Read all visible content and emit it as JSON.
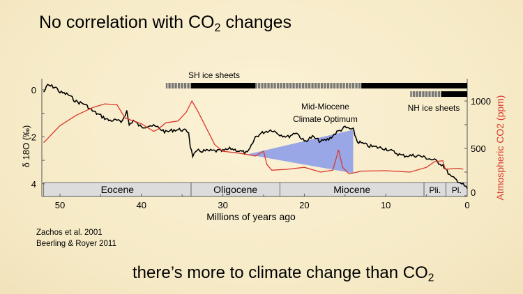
{
  "slide": {
    "title_main": "No correlation with CO",
    "title_sub": "2",
    "title_end": " changes",
    "bottom_main": "there’s more to climate change than CO",
    "bottom_sub": "2",
    "references": [
      "Zachos et al. 2001",
      "Beerling & Royer 2011"
    ]
  },
  "chart_data": {
    "type": "line",
    "xlabel": "Millions of years ago",
    "ylabel_left": "δ 18O (‰)",
    "ylabel_right": "Atmospheric CO2 (ppm)",
    "x_ticks": [
      50,
      40,
      30,
      20,
      10,
      0
    ],
    "xlim": [
      52,
      0
    ],
    "y_left_ticks": [
      0,
      2,
      4
    ],
    "y_left_lim": [
      -0.5,
      4.5
    ],
    "y_left_inverted": true,
    "y_right_ticks": [
      0,
      500,
      1000
    ],
    "y_right_lim": [
      0,
      1250
    ],
    "colors": {
      "d18O": "#000000",
      "co2": "#d9382c",
      "optimum": "#8f9ee8",
      "epoch_bar": "#dcdcdc"
    },
    "series": [
      {
        "axis": "left",
        "points": [
          [
            52,
            0.1
          ],
          [
            51.5,
            -0.2
          ],
          [
            50.5,
            -0.1
          ],
          [
            50,
            0.1
          ],
          [
            49,
            0.2
          ],
          [
            48,
            0.5
          ],
          [
            47,
            0.6
          ],
          [
            46,
            0.9
          ],
          [
            45,
            1.1
          ],
          [
            44,
            1.3
          ],
          [
            43,
            1.3
          ],
          [
            42.5,
            1.4
          ],
          [
            41.8,
            0.9
          ],
          [
            41.5,
            1.5
          ],
          [
            41,
            1.3
          ],
          [
            40,
            1.6
          ],
          [
            39,
            1.5
          ],
          [
            38,
            1.6
          ],
          [
            37,
            1.8
          ],
          [
            36,
            1.7
          ],
          [
            35,
            1.7
          ],
          [
            34.2,
            1.8
          ],
          [
            34,
            2.4
          ],
          [
            33.7,
            2.8
          ],
          [
            33,
            2.6
          ],
          [
            32,
            2.6
          ],
          [
            31,
            2.6
          ],
          [
            30,
            2.6
          ],
          [
            29,
            2.5
          ],
          [
            28,
            2.6
          ],
          [
            27,
            2.7
          ],
          [
            26.5,
            2.4
          ],
          [
            26,
            2.0
          ],
          [
            25,
            1.8
          ],
          [
            24,
            1.7
          ],
          [
            23,
            1.9
          ],
          [
            22,
            2.0
          ],
          [
            21,
            1.8
          ],
          [
            20,
            2.2
          ],
          [
            19,
            2.0
          ],
          [
            18,
            2.2
          ],
          [
            17,
            2.1
          ],
          [
            16,
            1.8
          ],
          [
            15,
            1.6
          ],
          [
            14,
            1.7
          ],
          [
            13.8,
            1.9
          ],
          [
            13.5,
            2.2
          ],
          [
            12,
            2.4
          ],
          [
            10,
            2.5
          ],
          [
            8,
            2.8
          ],
          [
            6,
            2.8
          ],
          [
            5,
            2.9
          ],
          [
            4,
            3.0
          ],
          [
            3,
            3.2
          ],
          [
            2,
            3.7
          ],
          [
            1,
            3.9
          ],
          [
            0,
            4.2
          ]
        ]
      },
      {
        "axis": "right",
        "points": [
          [
            52,
            560
          ],
          [
            50,
            740
          ],
          [
            48,
            850
          ],
          [
            46,
            930
          ],
          [
            44.5,
            970
          ],
          [
            43,
            960
          ],
          [
            42,
            820
          ],
          [
            40,
            760
          ],
          [
            38.5,
            680
          ],
          [
            38,
            700
          ],
          [
            37,
            770
          ],
          [
            35.5,
            790
          ],
          [
            34.5,
            880
          ],
          [
            33.8,
            1000
          ],
          [
            33,
            880
          ],
          [
            31,
            540
          ],
          [
            30,
            470
          ],
          [
            28,
            450
          ],
          [
            26,
            420
          ],
          [
            25,
            470
          ],
          [
            24.6,
            330
          ],
          [
            24,
            270
          ],
          [
            22,
            280
          ],
          [
            20,
            300
          ],
          [
            18,
            250
          ],
          [
            16.5,
            270
          ],
          [
            15.8,
            485
          ],
          [
            15.3,
            300
          ],
          [
            14.5,
            230
          ],
          [
            13,
            260
          ],
          [
            10,
            265
          ],
          [
            7,
            250
          ],
          [
            5,
            300
          ],
          [
            4,
            360
          ],
          [
            3,
            370
          ],
          [
            2.7,
            280
          ],
          [
            1,
            290
          ],
          [
            0.5,
            280
          ]
        ]
      }
    ],
    "optimum_region": {
      "label_line1": "Mid-Miocene",
      "label_line2": "Climate Optimum",
      "apex": [
        27,
        2.75
      ],
      "right_x": 14,
      "right_top": 1.7,
      "right_bottom": 3.55
    },
    "epochs": [
      {
        "name": "Eocene",
        "start": 52,
        "end": 33.9
      },
      {
        "name": "Oligocene",
        "start": 33.9,
        "end": 23
      },
      {
        "name": "Miocene",
        "start": 23,
        "end": 5.3
      },
      {
        "name": "Pli.",
        "start": 5.3,
        "end": 2.6
      },
      {
        "name": "Pl.",
        "start": 2.6,
        "end": 0
      }
    ],
    "ice_sheets": [
      {
        "label": "SH ice sheets",
        "segments": [
          {
            "start": 37,
            "end": 33.9,
            "style": "partial"
          },
          {
            "start": 33.9,
            "end": 26,
            "style": "full"
          },
          {
            "start": 26,
            "end": 13,
            "style": "partial"
          },
          {
            "start": 13,
            "end": 0,
            "style": "full"
          }
        ]
      },
      {
        "label": "NH ice sheets",
        "segments": [
          {
            "start": 7,
            "end": 3.2,
            "style": "partial"
          },
          {
            "start": 3.2,
            "end": 0,
            "style": "full"
          }
        ]
      }
    ]
  }
}
